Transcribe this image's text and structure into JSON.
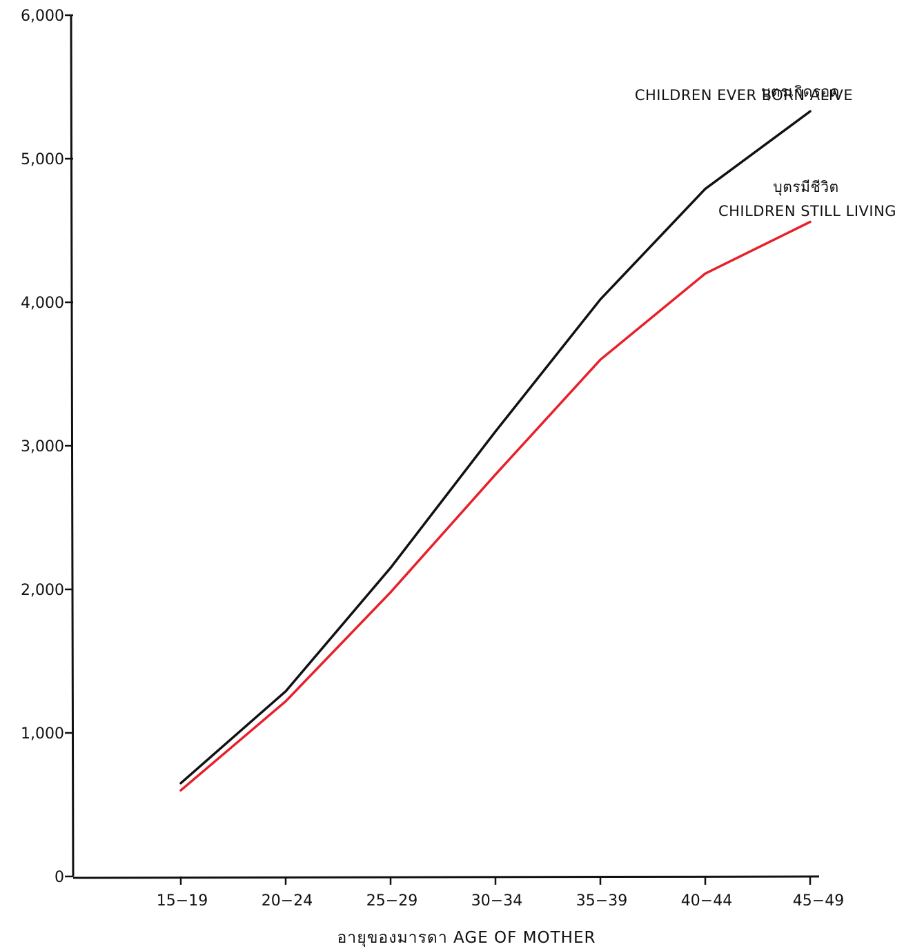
{
  "chart_data": {
    "type": "line",
    "title": "",
    "xlabel": "อายุของมารดา AGE OF MOTHER",
    "ylabel": "",
    "categories": [
      "15-19",
      "20-24",
      "25-29",
      "30-34",
      "35-39",
      "40-44",
      "45-49"
    ],
    "ylim": [
      0,
      6000
    ],
    "yticks": [
      "0",
      "1,000",
      "2,000",
      "3,000",
      "4,000",
      "5,000",
      "6,000"
    ],
    "grid": false,
    "series": [
      {
        "name": "CHILDREN EVER BORN ALIVE",
        "name_thai": "บุตรเกิดรอด",
        "color": "#111111",
        "values": [
          650,
          1290,
          2150,
          3100,
          4020,
          4790,
          5330
        ]
      },
      {
        "name": "CHILDREN STILL LIVING",
        "name_thai": "บุตรมีชีวิต",
        "color": "#e8202a",
        "values": [
          600,
          1220,
          1980,
          2800,
          3600,
          4200,
          4560
        ]
      }
    ]
  }
}
